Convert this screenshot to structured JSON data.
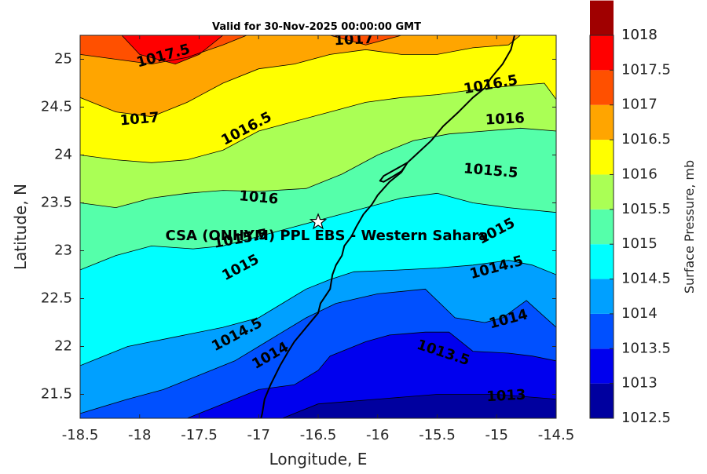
{
  "chart_data": {
    "type": "contour",
    "title": "Valid for 30-Nov-2025 00:00:00 GMT",
    "xlabel": "Longitude, E",
    "ylabel": "Latitude, N",
    "xlim": [
      -18.5,
      -14.5
    ],
    "ylim": [
      21.25,
      25.25
    ],
    "x_ticks": [
      -18.5,
      -18,
      -17.5,
      -17,
      -16.5,
      -16,
      -15.5,
      -15,
      -14.5
    ],
    "x_tick_labels": [
      "-18.5",
      "-18",
      "-17.5",
      "-17",
      "-16.5",
      "-16",
      "-15.5",
      "-15",
      "-14.5"
    ],
    "y_ticks": [
      21.5,
      22,
      22.5,
      23,
      23.5,
      24,
      24.5,
      25
    ],
    "y_tick_labels": [
      "21.5",
      "22",
      "22.5",
      "23",
      "23.5",
      "24",
      "24.5",
      "25"
    ],
    "colorbar": {
      "label": "Surface Pressure, mb",
      "range": [
        1012.5,
        1018
      ],
      "levels": [
        1012.5,
        1013,
        1013.5,
        1014,
        1014.5,
        1015,
        1015.5,
        1016,
        1016.5,
        1017,
        1017.5,
        1018
      ],
      "tick_labels": [
        "1012.5",
        "1013",
        "1013.5",
        "1014",
        "1014.5",
        "1015",
        "1015.5",
        "1016",
        "1016.5",
        "1017",
        "1017.5",
        "1018"
      ],
      "colors": [
        "#00009F",
        "#0000EE",
        "#0050FF",
        "#00A0FF",
        "#00FFFF",
        "#55FFAA",
        "#AAFF55",
        "#FFFF00",
        "#FFA500",
        "#FF5000",
        "#FF0000",
        "#A00000"
      ]
    },
    "contour_lines": [
      {
        "level": 1013,
        "points": [
          [
            -16.8,
            21.25
          ],
          [
            -16.5,
            21.4
          ],
          [
            -16.0,
            21.45
          ],
          [
            -15.5,
            21.5
          ],
          [
            -15.0,
            21.5
          ],
          [
            -14.5,
            21.45
          ]
        ]
      },
      {
        "level": 1013.5,
        "points": [
          [
            -17.6,
            21.25
          ],
          [
            -17.3,
            21.4
          ],
          [
            -17.0,
            21.55
          ],
          [
            -16.7,
            21.6
          ],
          [
            -16.5,
            21.75
          ],
          [
            -16.4,
            21.9
          ],
          [
            -16.1,
            22.05
          ],
          [
            -15.9,
            22.12
          ],
          [
            -15.6,
            22.15
          ],
          [
            -15.4,
            22.15
          ],
          [
            -15.2,
            21.95
          ],
          [
            -14.9,
            21.93
          ],
          [
            -14.7,
            21.9
          ],
          [
            -14.5,
            21.85
          ]
        ]
      },
      {
        "level": 1014,
        "points": [
          [
            -18.5,
            21.3
          ],
          [
            -18.1,
            21.45
          ],
          [
            -17.8,
            21.55
          ],
          [
            -17.5,
            21.7
          ],
          [
            -17.2,
            21.85
          ],
          [
            -17.0,
            22.0
          ],
          [
            -16.8,
            22.15
          ],
          [
            -16.6,
            22.3
          ],
          [
            -16.35,
            22.45
          ],
          [
            -16.0,
            22.55
          ],
          [
            -15.6,
            22.6
          ],
          [
            -15.35,
            22.3
          ],
          [
            -15.1,
            22.25
          ],
          [
            -14.95,
            22.3
          ],
          [
            -14.75,
            22.48
          ],
          [
            -14.5,
            22.2
          ]
        ]
      },
      {
        "level": 1014.5,
        "points": [
          [
            -18.5,
            21.8
          ],
          [
            -18.1,
            22.0
          ],
          [
            -17.7,
            22.1
          ],
          [
            -17.3,
            22.2
          ],
          [
            -17.0,
            22.3
          ],
          [
            -16.8,
            22.45
          ],
          [
            -16.6,
            22.6
          ],
          [
            -16.4,
            22.7
          ],
          [
            -16.2,
            22.78
          ],
          [
            -15.8,
            22.8
          ],
          [
            -15.5,
            22.82
          ],
          [
            -15.2,
            22.85
          ],
          [
            -14.9,
            22.9
          ],
          [
            -14.7,
            22.85
          ],
          [
            -14.5,
            22.75
          ]
        ]
      },
      {
        "level": 1015,
        "points": [
          [
            -18.5,
            22.8
          ],
          [
            -18.2,
            22.95
          ],
          [
            -17.9,
            23.05
          ],
          [
            -17.55,
            23.02
          ],
          [
            -17.3,
            23.05
          ],
          [
            -17.0,
            23.15
          ],
          [
            -16.7,
            23.25
          ],
          [
            -16.4,
            23.35
          ],
          [
            -16.1,
            23.45
          ],
          [
            -15.8,
            23.55
          ],
          [
            -15.5,
            23.6
          ],
          [
            -15.2,
            23.5
          ],
          [
            -14.9,
            23.45
          ],
          [
            -14.5,
            23.4
          ]
        ]
      },
      {
        "level": 1015.5,
        "points": [
          [
            -18.5,
            23.5
          ],
          [
            -18.2,
            23.45
          ],
          [
            -17.9,
            23.55
          ],
          [
            -17.6,
            23.6
          ],
          [
            -17.3,
            23.63
          ],
          [
            -17.0,
            23.62
          ],
          [
            -16.6,
            23.65
          ],
          [
            -16.3,
            23.8
          ],
          [
            -16.0,
            24.0
          ],
          [
            -15.7,
            24.15
          ],
          [
            -15.4,
            24.22
          ],
          [
            -15.1,
            24.25
          ],
          [
            -14.8,
            24.28
          ],
          [
            -14.5,
            24.25
          ]
        ]
      },
      {
        "level": 1016,
        "points": [
          [
            -18.5,
            24.0
          ],
          [
            -18.2,
            23.95
          ],
          [
            -17.9,
            23.92
          ],
          [
            -17.6,
            23.95
          ],
          [
            -17.3,
            24.05
          ],
          [
            -17.0,
            24.25
          ],
          [
            -16.7,
            24.35
          ],
          [
            -16.4,
            24.45
          ],
          [
            -16.1,
            24.55
          ],
          [
            -15.8,
            24.6
          ],
          [
            -15.5,
            24.63
          ],
          [
            -15.2,
            24.68
          ],
          [
            -14.9,
            24.72
          ],
          [
            -14.6,
            24.75
          ],
          [
            -14.5,
            24.58
          ]
        ]
      },
      {
        "level": 1016.5,
        "points": [
          [
            -18.5,
            24.6
          ],
          [
            -18.2,
            24.45
          ],
          [
            -17.9,
            24.4
          ],
          [
            -17.6,
            24.55
          ],
          [
            -17.3,
            24.75
          ],
          [
            -17.0,
            24.9
          ],
          [
            -16.7,
            24.95
          ],
          [
            -16.4,
            25.05
          ],
          [
            -16.1,
            25.1
          ],
          [
            -15.8,
            25.05
          ],
          [
            -15.5,
            25.05
          ],
          [
            -15.2,
            25.12
          ],
          [
            -14.9,
            25.15
          ],
          [
            -14.8,
            25.25
          ]
        ]
      },
      {
        "level": 1017,
        "points": [
          [
            -18.5,
            25.05
          ],
          [
            -18.2,
            25.0
          ],
          [
            -17.9,
            24.95
          ],
          [
            -17.6,
            25.02
          ],
          [
            -17.3,
            25.15
          ],
          [
            -17.1,
            25.25
          ]
        ]
      },
      {
        "level": 1017,
        "points": [
          [
            -16.4,
            25.25
          ],
          [
            -16.1,
            25.15
          ],
          [
            -15.8,
            25.25
          ]
        ]
      },
      {
        "level": 1017.5,
        "points": [
          [
            -18.15,
            25.25
          ],
          [
            -18.0,
            25.05
          ],
          [
            -17.7,
            24.95
          ],
          [
            -17.5,
            25.05
          ],
          [
            -17.3,
            25.25
          ]
        ]
      }
    ],
    "contour_labels": [
      {
        "text": "1017.5",
        "x": -17.8,
        "y": 25.03,
        "rotation": -15
      },
      {
        "text": "1017",
        "x": -16.2,
        "y": 25.2,
        "rotation": -3
      },
      {
        "text": "1016.5",
        "x": -15.05,
        "y": 24.73,
        "rotation": -10
      },
      {
        "text": "1017",
        "x": -18.0,
        "y": 24.37,
        "rotation": -5
      },
      {
        "text": "1016.5",
        "x": -17.1,
        "y": 24.27,
        "rotation": -28
      },
      {
        "text": "1016",
        "x": -14.93,
        "y": 24.37,
        "rotation": -3
      },
      {
        "text": "1015.5",
        "x": -15.05,
        "y": 23.83,
        "rotation": 5
      },
      {
        "text": "1016",
        "x": -17.0,
        "y": 23.55,
        "rotation": 5
      },
      {
        "text": "1015",
        "x": -15.0,
        "y": 23.2,
        "rotation": -28
      },
      {
        "text": "1015.5",
        "x": -17.15,
        "y": 23.12,
        "rotation": -10
      },
      {
        "text": "1015",
        "x": -17.15,
        "y": 22.82,
        "rotation": -28
      },
      {
        "text": "1014.5",
        "x": -15.0,
        "y": 22.82,
        "rotation": -15
      },
      {
        "text": "1014",
        "x": -14.9,
        "y": 22.28,
        "rotation": -15
      },
      {
        "text": "1014.5",
        "x": -17.18,
        "y": 22.12,
        "rotation": -28
      },
      {
        "text": "1014",
        "x": -16.9,
        "y": 21.9,
        "rotation": -30
      },
      {
        "text": "1013.5",
        "x": -15.45,
        "y": 21.93,
        "rotation": 18
      },
      {
        "text": "1013",
        "x": -14.92,
        "y": 21.48,
        "rotation": -3
      }
    ],
    "coastline": [
      [
        -14.85,
        25.25
      ],
      [
        -14.88,
        25.1
      ],
      [
        -14.95,
        24.95
      ],
      [
        -15.05,
        24.8
      ],
      [
        -15.1,
        24.7
      ],
      [
        -15.2,
        24.6
      ],
      [
        -15.32,
        24.45
      ],
      [
        -15.45,
        24.3
      ],
      [
        -15.55,
        24.15
      ],
      [
        -15.68,
        24.0
      ],
      [
        -15.75,
        23.92
      ],
      [
        -15.8,
        23.82
      ],
      [
        -15.9,
        23.72
      ],
      [
        -16.0,
        23.58
      ],
      [
        -16.05,
        23.48
      ],
      [
        -16.12,
        23.38
      ],
      [
        -16.18,
        23.25
      ],
      [
        -16.22,
        23.15
      ],
      [
        -16.28,
        23.05
      ],
      [
        -16.3,
        22.95
      ],
      [
        -16.35,
        22.85
      ],
      [
        -16.38,
        22.75
      ],
      [
        -16.4,
        22.6
      ],
      [
        -16.48,
        22.45
      ],
      [
        -16.5,
        22.35
      ],
      [
        -16.6,
        22.2
      ],
      [
        -16.7,
        22.05
      ],
      [
        -16.75,
        21.95
      ],
      [
        -16.82,
        21.8
      ],
      [
        -16.9,
        21.6
      ],
      [
        -16.95,
        21.45
      ],
      [
        -16.97,
        21.3
      ],
      [
        -16.98,
        21.25
      ]
    ],
    "coastline_peninsula": [
      [
        -15.75,
        23.92
      ],
      [
        -15.85,
        23.85
      ],
      [
        -15.95,
        23.78
      ],
      [
        -15.98,
        23.73
      ],
      [
        -15.95,
        23.72
      ],
      [
        -15.88,
        23.77
      ],
      [
        -15.8,
        23.83
      ],
      [
        -15.77,
        23.88
      ]
    ],
    "station": {
      "name": "CSA (ONHYM) PPL EBS - Western Sahara",
      "lon": -16.5,
      "lat": 23.3
    }
  }
}
